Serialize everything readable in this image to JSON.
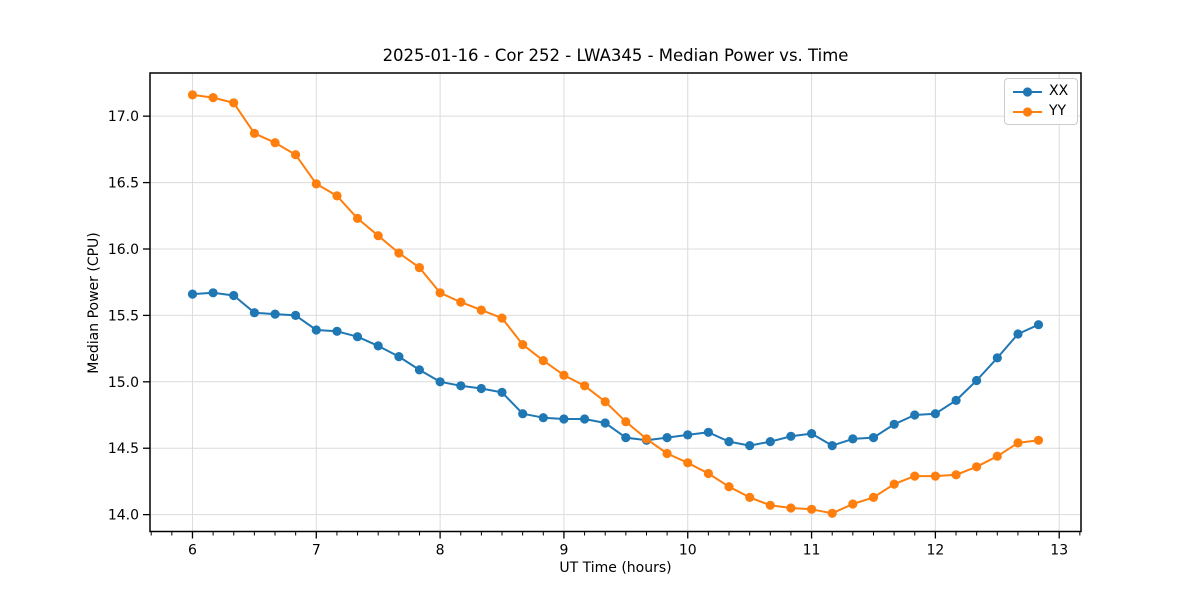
{
  "chart_data": {
    "type": "line",
    "title": "2025-01-16 - Cor 252 - LWA345 - Median Power vs. Time",
    "xlabel": "UT Time (hours)",
    "ylabel": "Median Power (CPU)",
    "grid": true,
    "legend_position": "upper right",
    "marker": "o",
    "xlim": [
      5.657,
      13.176
    ],
    "ylim": [
      13.873,
      17.325
    ],
    "xticks": [
      6,
      7,
      8,
      9,
      10,
      11,
      12,
      13
    ],
    "yticks": [
      14.0,
      14.5,
      15.0,
      15.5,
      16.0,
      16.5,
      17.0
    ],
    "x_minor_step_hours": 0.1667,
    "grid_color": "#dcdcdc",
    "axis_color": "#000000",
    "x": [
      6.0,
      6.167,
      6.333,
      6.5,
      6.667,
      6.833,
      7.0,
      7.167,
      7.333,
      7.5,
      7.667,
      7.833,
      8.0,
      8.167,
      8.333,
      8.5,
      8.667,
      8.833,
      9.0,
      9.167,
      9.333,
      9.5,
      9.667,
      9.833,
      10.0,
      10.167,
      10.333,
      10.5,
      10.667,
      10.833,
      11.0,
      11.167,
      11.333,
      11.5,
      11.667,
      11.833,
      12.0,
      12.167,
      12.333,
      12.5,
      12.667,
      12.833
    ],
    "series": [
      {
        "name": "XX",
        "color": "#1f77b4",
        "values": [
          15.66,
          15.67,
          15.65,
          15.52,
          15.51,
          15.5,
          15.39,
          15.38,
          15.34,
          15.27,
          15.19,
          15.09,
          15.0,
          14.97,
          14.95,
          14.92,
          14.76,
          14.73,
          14.72,
          14.72,
          14.69,
          14.58,
          14.56,
          14.58,
          14.6,
          14.62,
          14.55,
          14.52,
          14.55,
          14.59,
          14.61,
          14.52,
          14.57,
          14.58,
          14.68,
          14.75,
          14.76,
          14.86,
          15.01,
          15.18,
          15.36,
          15.43
        ]
      },
      {
        "name": "YY",
        "color": "#ff7f0e",
        "values": [
          17.16,
          17.14,
          17.1,
          16.87,
          16.8,
          16.71,
          16.49,
          16.4,
          16.23,
          16.1,
          15.97,
          15.86,
          15.67,
          15.6,
          15.54,
          15.48,
          15.28,
          15.16,
          15.05,
          14.97,
          14.85,
          14.7,
          14.57,
          14.46,
          14.39,
          14.31,
          14.21,
          14.13,
          14.07,
          14.05,
          14.04,
          14.01,
          14.08,
          14.13,
          14.23,
          14.29,
          14.29,
          14.3,
          14.36,
          14.44,
          14.54,
          14.56
        ]
      }
    ]
  }
}
